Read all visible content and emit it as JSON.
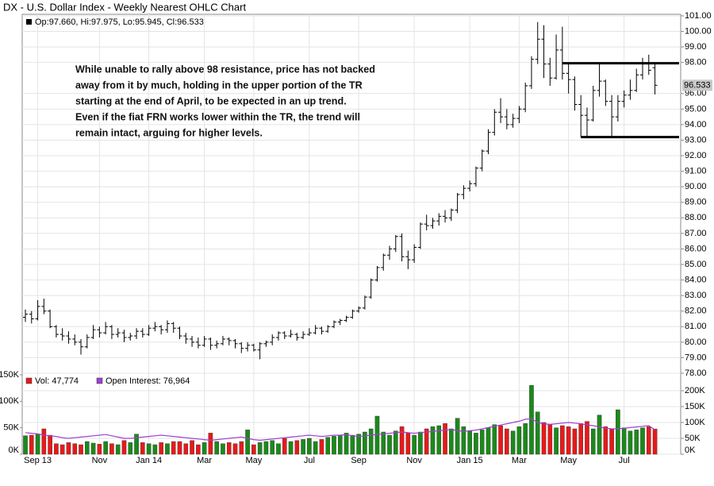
{
  "title": "DX - U.S. Dollar Index - Weekly Nearest OHLC Chart",
  "annotation": [
    "While unable to rally above 98 resistance, price has not backed",
    "away from it by much, holding in the upper portion of the TR",
    "starting at the end of April, to be expected in an up trend.",
    "Even if the fiat FRN works lower within the TR, the trend will",
    "remain intact, arguing for higher levels."
  ],
  "chart_data": [
    {
      "type": "ohlc",
      "legend": "Op:97.660, Hi:97.975, Lo:95.945, Cl:96.533",
      "color": "#000000",
      "last_price": 96.533,
      "categories": [
        null,
        null,
        "Sep 13",
        null,
        null,
        null,
        null,
        null,
        null,
        null,
        null,
        null,
        "Nov",
        null,
        null,
        null,
        null,
        null,
        null,
        null,
        "Jan 14",
        null,
        null,
        null,
        null,
        null,
        null,
        null,
        null,
        "Mar",
        null,
        null,
        null,
        null,
        null,
        null,
        null,
        "May",
        null,
        null,
        null,
        null,
        null,
        null,
        null,
        null,
        "Jul",
        null,
        null,
        null,
        null,
        null,
        null,
        null,
        "Sep",
        null,
        null,
        null,
        null,
        null,
        null,
        null,
        null,
        "Nov",
        null,
        null,
        null,
        null,
        null,
        null,
        null,
        null,
        "Jan 15",
        null,
        null,
        null,
        null,
        null,
        null,
        null,
        "Mar",
        null,
        null,
        null,
        null,
        null,
        null,
        null,
        "May",
        null,
        null,
        null,
        null,
        null,
        null,
        null,
        null,
        "Jul",
        null,
        null,
        null,
        null,
        null
      ],
      "ohlc": [
        [
          81.6,
          82.1,
          81.3,
          81.8
        ],
        [
          81.8,
          82.0,
          81.2,
          81.5
        ],
        [
          81.5,
          82.7,
          81.4,
          82.3
        ],
        [
          82.3,
          82.8,
          81.8,
          82.0
        ],
        [
          82.0,
          82.1,
          80.9,
          81.0
        ],
        [
          81.0,
          81.1,
          80.3,
          80.5
        ],
        [
          80.5,
          80.9,
          80.1,
          80.4
        ],
        [
          80.4,
          80.7,
          79.9,
          80.2
        ],
        [
          80.2,
          80.5,
          79.8,
          80.0
        ],
        [
          80.0,
          80.2,
          79.2,
          79.7
        ],
        [
          79.7,
          80.5,
          79.6,
          80.3
        ],
        [
          80.3,
          81.1,
          80.2,
          80.8
        ],
        [
          80.8,
          81.0,
          80.3,
          80.6
        ],
        [
          80.6,
          81.3,
          80.5,
          81.0
        ],
        [
          81.0,
          81.1,
          80.2,
          80.5
        ],
        [
          80.5,
          80.9,
          80.3,
          80.6
        ],
        [
          80.6,
          80.8,
          80.0,
          80.3
        ],
        [
          80.3,
          80.6,
          80.1,
          80.4
        ],
        [
          80.4,
          80.9,
          80.2,
          80.7
        ],
        [
          80.7,
          80.9,
          80.3,
          80.5
        ],
        [
          80.5,
          81.1,
          80.4,
          80.9
        ],
        [
          80.9,
          81.3,
          80.7,
          81.0
        ],
        [
          81.0,
          81.1,
          80.5,
          80.8
        ],
        [
          80.8,
          81.4,
          80.6,
          81.2
        ],
        [
          81.2,
          81.3,
          80.6,
          80.9
        ],
        [
          80.9,
          81.0,
          80.2,
          80.4
        ],
        [
          80.4,
          80.6,
          79.9,
          80.2
        ],
        [
          80.2,
          80.4,
          79.7,
          80.0
        ],
        [
          80.0,
          80.3,
          79.6,
          79.8
        ],
        [
          79.8,
          80.4,
          79.7,
          80.2
        ],
        [
          80.2,
          80.3,
          79.5,
          79.8
        ],
        [
          79.8,
          80.1,
          79.6,
          79.9
        ],
        [
          79.9,
          80.4,
          79.8,
          80.2
        ],
        [
          80.2,
          80.3,
          79.8,
          80.1
        ],
        [
          80.1,
          80.2,
          79.6,
          79.9
        ],
        [
          79.9,
          80.0,
          79.3,
          79.6
        ],
        [
          79.6,
          80.0,
          79.4,
          79.8
        ],
        [
          79.8,
          79.9,
          79.4,
          79.5
        ],
        [
          79.5,
          80.0,
          78.9,
          79.9
        ],
        [
          79.9,
          80.1,
          79.7,
          80.0
        ],
        [
          80.0,
          80.5,
          79.8,
          80.3
        ],
        [
          80.3,
          80.7,
          80.1,
          80.6
        ],
        [
          80.6,
          80.7,
          80.2,
          80.4
        ],
        [
          80.4,
          80.8,
          80.3,
          80.5
        ],
        [
          80.5,
          80.6,
          80.1,
          80.3
        ],
        [
          80.3,
          80.7,
          80.2,
          80.5
        ],
        [
          80.5,
          80.9,
          80.4,
          80.6
        ],
        [
          80.6,
          81.1,
          80.5,
          80.9
        ],
        [
          80.9,
          81.0,
          80.5,
          80.7
        ],
        [
          80.7,
          81.1,
          80.6,
          81.0
        ],
        [
          81.0,
          81.4,
          80.9,
          81.3
        ],
        [
          81.3,
          81.5,
          81.1,
          81.4
        ],
        [
          81.4,
          81.7,
          81.3,
          81.6
        ],
        [
          81.6,
          82.1,
          81.5,
          82.0
        ],
        [
          82.0,
          82.3,
          81.9,
          82.2
        ],
        [
          82.2,
          83.0,
          82.1,
          82.9
        ],
        [
          82.9,
          84.1,
          82.8,
          84.0
        ],
        [
          84.0,
          84.9,
          83.9,
          84.8
        ],
        [
          84.8,
          85.7,
          84.6,
          85.6
        ],
        [
          85.6,
          86.2,
          85.3,
          86.0
        ],
        [
          86.0,
          86.9,
          85.8,
          86.8
        ],
        [
          86.8,
          87.0,
          85.2,
          85.5
        ],
        [
          85.5,
          85.9,
          84.7,
          85.3
        ],
        [
          85.3,
          86.3,
          85.1,
          86.1
        ],
        [
          86.1,
          87.7,
          86.0,
          87.6
        ],
        [
          87.6,
          88.2,
          87.2,
          87.5
        ],
        [
          87.5,
          88.0,
          87.3,
          87.8
        ],
        [
          87.8,
          88.3,
          87.5,
          88.1
        ],
        [
          88.1,
          88.5,
          87.7,
          88.0
        ],
        [
          88.0,
          88.6,
          87.8,
          88.5
        ],
        [
          88.5,
          89.6,
          88.3,
          89.5
        ],
        [
          89.5,
          90.1,
          89.2,
          89.9
        ],
        [
          89.9,
          90.4,
          89.7,
          90.2
        ],
        [
          90.2,
          91.3,
          90.0,
          91.2
        ],
        [
          91.2,
          92.4,
          91.0,
          92.3
        ],
        [
          92.3,
          93.7,
          92.1,
          93.5
        ],
        [
          93.5,
          95.0,
          93.3,
          94.8
        ],
        [
          94.8,
          95.7,
          94.1,
          94.5
        ],
        [
          94.5,
          95.0,
          93.7,
          94.0
        ],
        [
          94.0,
          94.7,
          93.8,
          94.4
        ],
        [
          94.4,
          95.2,
          94.1,
          95.0
        ],
        [
          95.0,
          96.7,
          94.8,
          96.5
        ],
        [
          96.5,
          98.4,
          96.3,
          98.2
        ],
        [
          98.2,
          100.6,
          97.9,
          99.5
        ],
        [
          99.5,
          100.4,
          97.0,
          97.9
        ],
        [
          97.9,
          98.3,
          96.5,
          97.0
        ],
        [
          97.0,
          99.8,
          96.9,
          98.8
        ],
        [
          98.8,
          100.3,
          96.9,
          97.3
        ],
        [
          97.3,
          97.9,
          96.0,
          96.9
        ],
        [
          96.9,
          97.1,
          94.9,
          95.3
        ],
        [
          95.3,
          95.9,
          93.2,
          94.6
        ],
        [
          94.6,
          95.1,
          93.2,
          94.3
        ],
        [
          94.3,
          96.5,
          94.2,
          96.2
        ],
        [
          96.2,
          97.9,
          95.8,
          96.8
        ],
        [
          96.8,
          96.9,
          95.2,
          95.5
        ],
        [
          95.5,
          95.9,
          93.2,
          94.5
        ],
        [
          94.5,
          95.9,
          94.2,
          95.5
        ],
        [
          95.5,
          96.2,
          95.1,
          95.9
        ],
        [
          95.9,
          96.9,
          95.6,
          96.2
        ],
        [
          96.2,
          97.6,
          96.1,
          97.2
        ],
        [
          97.2,
          98.3,
          96.9,
          97.9
        ],
        [
          97.9,
          98.5,
          97.2,
          97.5
        ],
        [
          97.66,
          97.975,
          95.945,
          96.533
        ]
      ],
      "hlines": [
        {
          "value": 97.95,
          "start": 87
        },
        {
          "value": 93.2,
          "start": 90
        }
      ],
      "ylim": [
        78,
        101.1
      ],
      "yticks": [
        {
          "value": 78,
          "label": "78.00"
        },
        {
          "value": 79,
          "label": "79.00"
        },
        {
          "value": 80,
          "label": "80.00"
        },
        {
          "value": 81,
          "label": "81.00"
        },
        {
          "value": 82,
          "label": "82.00"
        },
        {
          "value": 83,
          "label": "83.00"
        },
        {
          "value": 84,
          "label": "84.00"
        },
        {
          "value": 85,
          "label": "85.00"
        },
        {
          "value": 86,
          "label": "86.00"
        },
        {
          "value": 87,
          "label": "87.00"
        },
        {
          "value": 88,
          "label": "88.00"
        },
        {
          "value": 89,
          "label": "89.00"
        },
        {
          "value": 90,
          "label": "90.00"
        },
        {
          "value": 91,
          "label": "91.00"
        },
        {
          "value": 92,
          "label": "92.00"
        },
        {
          "value": 93,
          "label": "93.00"
        },
        {
          "value": 94,
          "label": "94.00"
        },
        {
          "value": 95,
          "label": "95.00"
        },
        {
          "value": 96,
          "label": "96.00"
        },
        {
          "value": 98,
          "label": "98.00"
        },
        {
          "value": 99,
          "label": "99.00"
        },
        {
          "value": 100,
          "label": "100.00"
        },
        {
          "value": 101,
          "label": "101.00"
        }
      ],
      "grid": true
    },
    {
      "type": "volume",
      "series": [
        {
          "name": "Vol: 47,774",
          "color": "#e8191a",
          "up_color": "#1a8a1a",
          "down_color": "#e8191a",
          "values": [
            35000,
            36000,
            38000,
            48000,
            36000,
            20000,
            18000,
            22000,
            20000,
            18000,
            24000,
            21000,
            19000,
            24000,
            20000,
            18000,
            26000,
            22000,
            38000,
            22000,
            20000,
            18000,
            22000,
            20000,
            24000,
            24000,
            20000,
            26000,
            18000,
            22000,
            40000,
            24000,
            20000,
            22000,
            20000,
            24000,
            46000,
            18000,
            22000,
            24000,
            26000,
            20000,
            30000,
            24000,
            26000,
            28000,
            30000,
            24000,
            28000,
            32000,
            34000,
            36000,
            40000,
            36000,
            38000,
            42000,
            48000,
            72000,
            42000,
            36000,
            44000,
            52000,
            40000,
            36000,
            42000,
            48000,
            52000,
            54000,
            58000,
            48000,
            68000,
            52000,
            44000,
            40000,
            46000,
            50000,
            56000,
            54000,
            48000,
            44000,
            52000,
            58000,
            130000,
            80000,
            60000,
            56000,
            50000,
            54000,
            52000,
            48000,
            58000,
            62000,
            48000,
            74000,
            52000,
            48000,
            84000,
            50000,
            44000,
            46000,
            50000,
            52000,
            47774
          ]
        },
        {
          "name": "Open Interest: 76,964",
          "color": "#a040d0",
          "axis": "y2",
          "values": [
            68000,
            66000,
            64000,
            60000,
            58000,
            56000,
            52000,
            50000,
            52000,
            54000,
            56000,
            58000,
            60000,
            62000,
            58000,
            54000,
            50000,
            50000,
            52000,
            54000,
            56000,
            58000,
            60000,
            58000,
            56000,
            54000,
            52000,
            50000,
            48000,
            46000,
            44000,
            46000,
            48000,
            50000,
            52000,
            54000,
            50000,
            46000,
            44000,
            46000,
            48000,
            50000,
            52000,
            54000,
            56000,
            58000,
            60000,
            58000,
            56000,
            58000,
            60000,
            60000,
            62000,
            58000,
            56000,
            58000,
            60000,
            62000,
            64000,
            66000,
            68000,
            70000,
            68000,
            66000,
            68000,
            70000,
            72000,
            74000,
            76000,
            78000,
            74000,
            72000,
            74000,
            76000,
            80000,
            84000,
            88000,
            92000,
            96000,
            100000,
            104000,
            110000,
            112000,
            100000,
            96000,
            94000,
            96000,
            98000,
            100000,
            98000,
            96000,
            92000,
            90000,
            86000,
            82000,
            80000,
            80000,
            82000,
            84000,
            86000,
            88000,
            90000,
            76964
          ]
        }
      ],
      "ylim": [
        0,
        153000
      ],
      "yticks": [
        {
          "value": 0,
          "label": "0K"
        },
        {
          "value": 50000,
          "label": "50K"
        },
        {
          "value": 100000,
          "label": "100K"
        },
        {
          "value": 150000,
          "label": "150K"
        }
      ],
      "y2lim": [
        0,
        255000
      ],
      "y2ticks": [
        {
          "value": 0,
          "label": "0K"
        },
        {
          "value": 50000,
          "label": "50K"
        },
        {
          "value": 100000,
          "label": "100K"
        },
        {
          "value": 150000,
          "label": "150K"
        },
        {
          "value": 200000,
          "label": "200K"
        }
      ],
      "grid": true
    }
  ]
}
